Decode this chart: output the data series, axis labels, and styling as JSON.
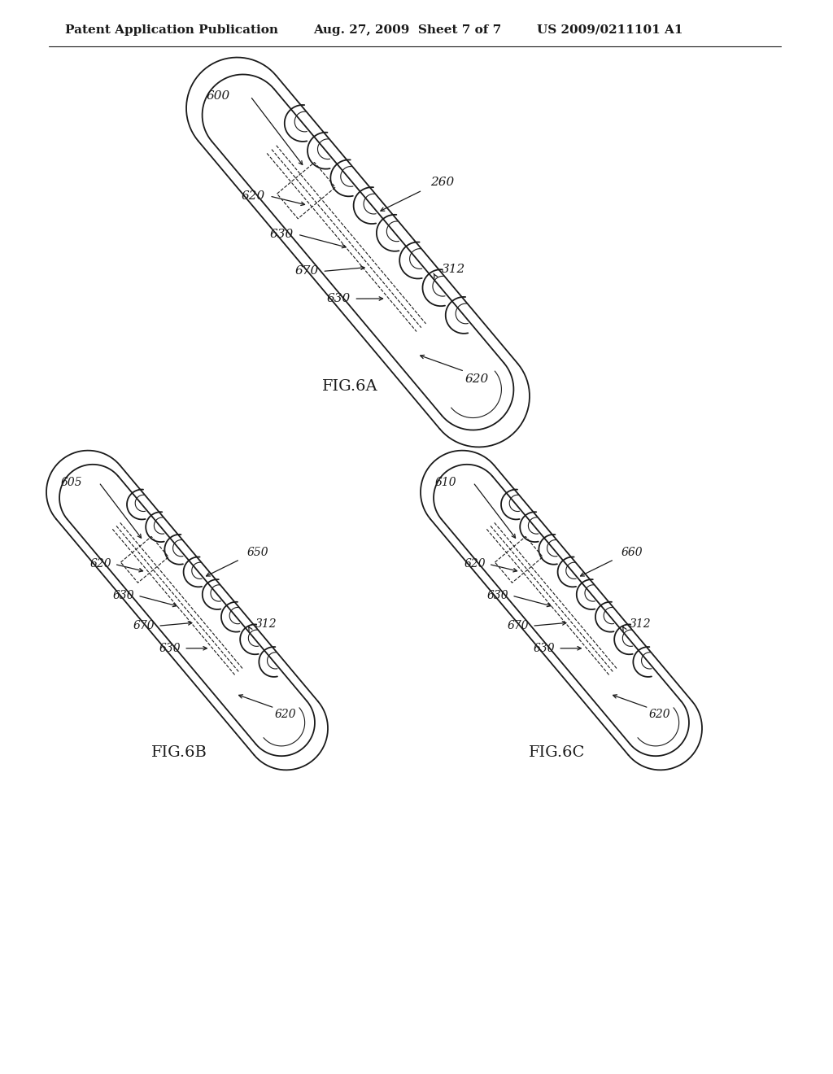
{
  "background_color": "#ffffff",
  "header_left": "Patent Application Publication",
  "header_center": "Aug. 27, 2009  Sheet 7 of 7",
  "header_right": "US 2009/0211101 A1",
  "fig6a_label": "FIG.6A",
  "fig6b_label": "FIG.6B",
  "fig6c_label": "FIG.6C",
  "label_fontsize": 14,
  "ref_fontsize": 11,
  "line_color": "#1a1a1a",
  "line_width": 1.3,
  "thin_line": 0.8
}
